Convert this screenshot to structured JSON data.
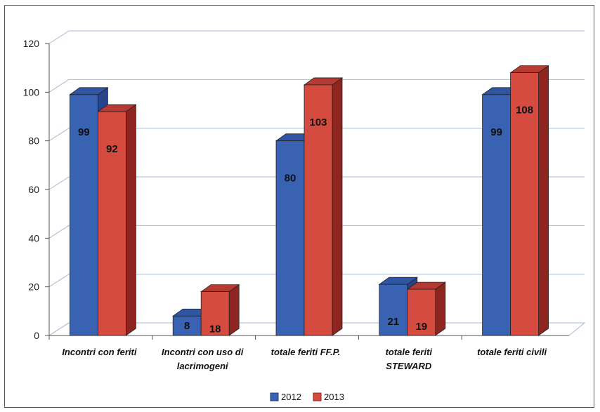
{
  "chart_data": {
    "type": "bar",
    "categories": [
      [
        "Incontri con feriti"
      ],
      [
        "Incontri con uso di",
        "lacrimogeni"
      ],
      [
        "totale feriti FF.P."
      ],
      [
        "totale feriti",
        "STEWARD"
      ],
      [
        "totale feriti civili"
      ]
    ],
    "series": [
      {
        "name": "2012",
        "values": [
          99,
          8,
          80,
          21,
          99
        ],
        "color": "#3a62b3",
        "dark": "#27438a",
        "top": "#2f55a6"
      },
      {
        "name": "2013",
        "values": [
          92,
          18,
          103,
          19,
          108
        ],
        "color": "#d64b40",
        "dark": "#8e2520",
        "top": "#b53a31"
      }
    ],
    "yticks": [
      0,
      20,
      40,
      60,
      80,
      100,
      120
    ],
    "ylim": [
      0,
      120
    ],
    "grid": true,
    "legend_position": "bottom"
  }
}
